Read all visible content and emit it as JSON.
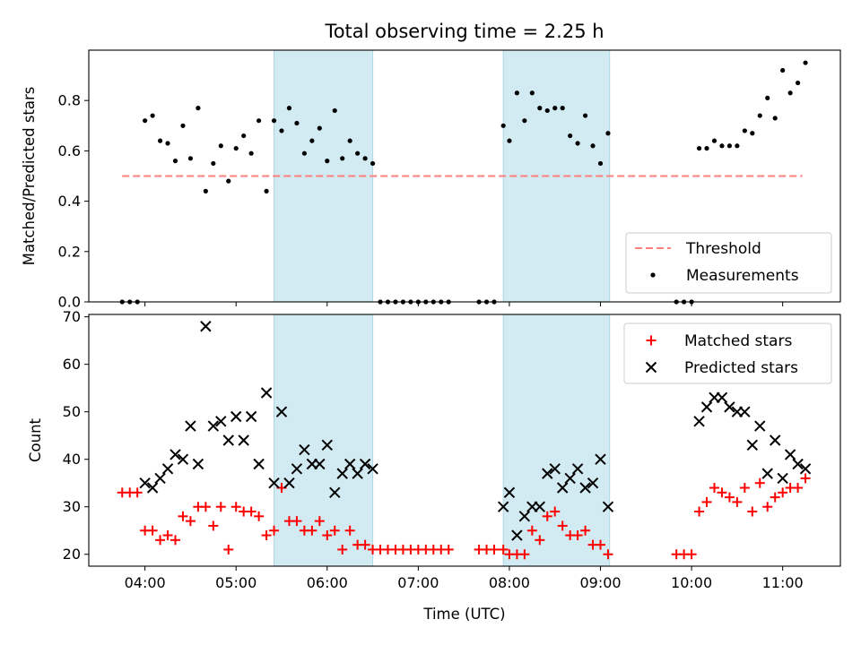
{
  "figure": {
    "title": "Total observing time = 2.25 h"
  },
  "colors": {
    "shade": "#add8e6",
    "threshold": "#ff7f7f",
    "measurements": "#000000",
    "matched": "#ff0000",
    "predicted": "#000000"
  },
  "chart_data": [
    {
      "type": "scatter",
      "name": "top-panel",
      "ylabel": "Matched/Predicted stars",
      "ylim": [
        0,
        1.0
      ],
      "yticks": [
        0.0,
        0.2,
        0.4,
        0.6,
        0.8
      ],
      "xlim": [
        "03:23",
        "11:38"
      ],
      "shaded_intervals": [
        [
          "05:25",
          "06:30"
        ],
        [
          "07:56",
          "09:06"
        ]
      ],
      "legend_position": "lower-right",
      "threshold": {
        "name": "Threshold",
        "value": 0.5,
        "x_range": [
          "03:45",
          "11:13"
        ]
      },
      "series": [
        {
          "name": "Measurements",
          "x": [
            "03:45",
            "03:50",
            "03:55",
            "04:00",
            "04:05",
            "04:10",
            "04:15",
            "04:20",
            "04:25",
            "04:30",
            "04:35",
            "04:40",
            "04:45",
            "04:50",
            "04:55",
            "05:00",
            "05:05",
            "05:10",
            "05:15",
            "05:20",
            "05:25",
            "05:30",
            "05:35",
            "05:40",
            "05:45",
            "05:50",
            "05:55",
            "06:00",
            "06:05",
            "06:10",
            "06:15",
            "06:20",
            "06:25",
            "06:30",
            "06:35",
            "06:40",
            "06:45",
            "06:50",
            "06:55",
            "07:00",
            "07:05",
            "07:10",
            "07:15",
            "07:20",
            "07:40",
            "07:45",
            "07:50",
            "07:56",
            "08:00",
            "08:05",
            "08:10",
            "08:15",
            "08:20",
            "08:25",
            "08:30",
            "08:35",
            "08:40",
            "08:45",
            "08:50",
            "08:55",
            "09:00",
            "09:05",
            "09:50",
            "09:55",
            "10:00",
            "10:05",
            "10:10",
            "10:15",
            "10:20",
            "10:25",
            "10:30",
            "10:35",
            "10:40",
            "10:45",
            "10:50",
            "10:55",
            "11:00",
            "11:05",
            "11:10",
            "11:15"
          ],
          "y": [
            0,
            0,
            0,
            0.72,
            0.74,
            0.64,
            0.63,
            0.56,
            0.7,
            0.57,
            0.77,
            0.44,
            0.55,
            0.62,
            0.48,
            0.61,
            0.66,
            0.59,
            0.72,
            0.44,
            0.72,
            0.68,
            0.77,
            0.71,
            0.59,
            0.64,
            0.69,
            0.56,
            0.76,
            0.57,
            0.64,
            0.59,
            0.57,
            0.55,
            0,
            0,
            0,
            0,
            0,
            0,
            0,
            0,
            0,
            0,
            0,
            0,
            0,
            0.7,
            0.64,
            0.83,
            0.72,
            0.83,
            0.77,
            0.76,
            0.77,
            0.77,
            0.66,
            0.63,
            0.74,
            0.62,
            0.55,
            0.67,
            0,
            0,
            0,
            0.61,
            0.61,
            0.64,
            0.62,
            0.62,
            0.62,
            0.68,
            0.67,
            0.74,
            0.81,
            0.73,
            0.92,
            0.83,
            0.87,
            0.95
          ]
        }
      ]
    },
    {
      "type": "scatter",
      "name": "bottom-panel",
      "xlabel": "Time (UTC)",
      "ylabel": "Count",
      "ylim": [
        17.5,
        70.5
      ],
      "yticks": [
        20,
        30,
        40,
        50,
        60,
        70
      ],
      "xlim": [
        "03:23",
        "11:38"
      ],
      "xticks": [
        "04:00",
        "05:00",
        "06:00",
        "07:00",
        "08:00",
        "09:00",
        "10:00",
        "11:00"
      ],
      "shaded_intervals": [
        [
          "05:25",
          "06:30"
        ],
        [
          "07:56",
          "09:06"
        ]
      ],
      "legend_position": "upper-right",
      "series": [
        {
          "name": "Matched stars",
          "x": [
            "03:45",
            "03:50",
            "03:55",
            "04:00",
            "04:05",
            "04:10",
            "04:15",
            "04:20",
            "04:25",
            "04:30",
            "04:35",
            "04:40",
            "04:45",
            "04:50",
            "04:55",
            "05:00",
            "05:05",
            "05:10",
            "05:15",
            "05:20",
            "05:25",
            "05:30",
            "05:35",
            "05:40",
            "05:45",
            "05:50",
            "05:55",
            "06:00",
            "06:05",
            "06:10",
            "06:15",
            "06:20",
            "06:25",
            "06:30",
            "06:35",
            "06:40",
            "06:45",
            "06:50",
            "06:55",
            "07:00",
            "07:05",
            "07:10",
            "07:15",
            "07:20",
            "07:40",
            "07:45",
            "07:50",
            "07:56",
            "08:00",
            "08:05",
            "08:10",
            "08:15",
            "08:20",
            "08:25",
            "08:30",
            "08:35",
            "08:40",
            "08:45",
            "08:50",
            "08:55",
            "09:00",
            "09:05",
            "09:50",
            "09:55",
            "10:00",
            "10:05",
            "10:10",
            "10:15",
            "10:20",
            "10:25",
            "10:30",
            "10:35",
            "10:40",
            "10:45",
            "10:50",
            "10:55",
            "11:00",
            "11:05",
            "11:10",
            "11:15"
          ],
          "y": [
            33,
            33,
            33,
            25,
            25,
            23,
            24,
            23,
            28,
            27,
            30,
            30,
            26,
            30,
            21,
            30,
            29,
            29,
            28,
            24,
            25,
            34,
            27,
            27,
            25,
            25,
            27,
            24,
            25,
            21,
            25,
            22,
            22,
            21,
            21,
            21,
            21,
            21,
            21,
            21,
            21,
            21,
            21,
            21,
            21,
            21,
            21,
            21,
            20,
            20,
            20,
            25,
            23,
            28,
            29,
            26,
            24,
            24,
            25,
            22,
            22,
            20,
            20,
            20,
            20,
            29,
            31,
            34,
            33,
            32,
            31,
            34,
            29,
            35,
            30,
            32,
            33,
            34,
            34,
            36
          ]
        },
        {
          "name": "Predicted stars",
          "x": [
            "04:00",
            "04:05",
            "04:10",
            "04:15",
            "04:20",
            "04:25",
            "04:30",
            "04:35",
            "04:40",
            "04:45",
            "04:50",
            "04:55",
            "05:00",
            "05:05",
            "05:10",
            "05:15",
            "05:20",
            "05:25",
            "05:30",
            "05:35",
            "05:40",
            "05:45",
            "05:50",
            "05:55",
            "06:00",
            "06:05",
            "06:10",
            "06:15",
            "06:20",
            "06:25",
            "06:30",
            "07:56",
            "08:00",
            "08:05",
            "08:10",
            "08:15",
            "08:20",
            "08:25",
            "08:30",
            "08:35",
            "08:40",
            "08:45",
            "08:50",
            "08:55",
            "09:00",
            "09:05",
            "10:05",
            "10:10",
            "10:15",
            "10:20",
            "10:25",
            "10:30",
            "10:35",
            "10:40",
            "10:45",
            "10:50",
            "10:55",
            "11:00",
            "11:05",
            "11:10",
            "11:15"
          ],
          "y": [
            35,
            34,
            36,
            38,
            41,
            40,
            47,
            39,
            68,
            47,
            48,
            44,
            49,
            44,
            49,
            39,
            54,
            35,
            50,
            35,
            38,
            42,
            39,
            39,
            43,
            33,
            37,
            39,
            37,
            39,
            38,
            30,
            33,
            24,
            28,
            30,
            30,
            37,
            38,
            34,
            36,
            38,
            34,
            35,
            40,
            30,
            48,
            51,
            53,
            53,
            51,
            50,
            50,
            43,
            47,
            37,
            44,
            36,
            41,
            39,
            38
          ]
        }
      ]
    }
  ]
}
